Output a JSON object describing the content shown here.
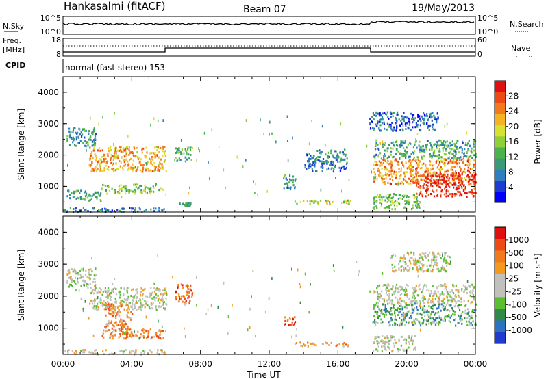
{
  "header": {
    "station": "Hankasalmi (fitACF)",
    "beam": "Beam 07",
    "date": "19/May/2013"
  },
  "strip1": {
    "left_label": "N.Sky",
    "right_label": "N.Search",
    "left_ticks": [
      "10^5",
      "10^0"
    ],
    "right_ticks": [
      "10^5",
      "10^0"
    ]
  },
  "strip2": {
    "left_label_line1": "Freq.",
    "left_label_line2": "[MHz]",
    "right_label": "Nave",
    "left_ticks": [
      "18",
      "8"
    ],
    "right_ticks": [
      "60",
      "0"
    ]
  },
  "cpid": {
    "label": "CPID",
    "text": "normal (fast stereo) 153"
  },
  "chart_data": [
    {
      "type": "heatmap",
      "name": "power",
      "ylabel": "Slant Range [km]",
      "ylim": [
        180,
        4500
      ],
      "yticks": [
        "1000",
        "2000",
        "3000",
        "4000"
      ],
      "xlim": [
        0,
        24
      ],
      "colorbar": {
        "label": "Power [dB]",
        "ticks": [
          "4",
          "8",
          "12",
          "16",
          "20",
          "24",
          "28"
        ],
        "colors": [
          "#0000ff",
          "#1e3cd2",
          "#2f7fbf",
          "#3a9a78",
          "#4bb34b",
          "#8fcf3a",
          "#d8e030",
          "#f4b225",
          "#f27a1d",
          "#ee4a16",
          "#e01010"
        ]
      },
      "regions": [
        {
          "t": [
            0.0,
            6.0
          ],
          "range": [
            200,
            350
          ],
          "level": 0.25
        },
        {
          "t": [
            0.2,
            1.9
          ],
          "range": [
            2300,
            2900
          ],
          "level": 0.3
        },
        {
          "t": [
            1.5,
            6.0
          ],
          "range": [
            1500,
            2300
          ],
          "level": 0.7
        },
        {
          "t": [
            2.2,
            5.8
          ],
          "range": [
            800,
            1100
          ],
          "level": 0.45
        },
        {
          "t": [
            0.2,
            2.2
          ],
          "range": [
            550,
            900
          ],
          "level": 0.35
        },
        {
          "t": [
            6.5,
            7.5
          ],
          "range": [
            1800,
            2300
          ],
          "level": 0.4
        },
        {
          "t": [
            6.7,
            7.4
          ],
          "range": [
            400,
            500
          ],
          "level": 0.3
        },
        {
          "t": [
            13.4,
            16.8
          ],
          "range": [
            460,
            580
          ],
          "level": 0.55
        },
        {
          "t": [
            12.8,
            13.5
          ],
          "range": [
            900,
            1400
          ],
          "level": 0.3
        },
        {
          "t": [
            14.0,
            16.5
          ],
          "range": [
            1500,
            2200
          ],
          "level": 0.25
        },
        {
          "t": [
            18.0,
            24.0
          ],
          "range": [
            1900,
            2500
          ],
          "level": 0.35
        },
        {
          "t": [
            18.0,
            24.0
          ],
          "range": [
            1100,
            1900
          ],
          "level": 0.75
        },
        {
          "t": [
            20.5,
            24.0
          ],
          "range": [
            700,
            1500
          ],
          "level": 0.95
        },
        {
          "t": [
            18.0,
            20.8
          ],
          "range": [
            300,
            800
          ],
          "level": 0.45
        },
        {
          "t": [
            17.8,
            21.8
          ],
          "range": [
            2800,
            3400
          ],
          "level": 0.2
        }
      ]
    },
    {
      "type": "heatmap",
      "name": "velocity",
      "ylabel": "Slant Range [km]",
      "ylim": [
        180,
        4500
      ],
      "yticks": [
        "1000",
        "2000",
        "3000",
        "4000"
      ],
      "xlim": [
        0,
        24
      ],
      "xticks": [
        "00:00",
        "04:00",
        "08:00",
        "12:00",
        "16:00",
        "20:00",
        "00:00"
      ],
      "xlabel": "Time UT",
      "colorbar": {
        "label": "Velocity [m s⁻¹]",
        "ticks": [
          "1000",
          "500",
          "100",
          "25",
          "-25",
          "-100",
          "-500",
          "-1000"
        ],
        "colors": [
          "#1f3ccc",
          "#2b72c0",
          "#2f8a4a",
          "#5abf2e",
          "#c0c0bc",
          "#c0c0bc",
          "#f39a1e",
          "#f27a1d",
          "#ee4a16",
          "#e01010"
        ]
      },
      "regions": [
        {
          "t": [
            0.0,
            6.0
          ],
          "range": [
            200,
            350
          ],
          "level": 0.55
        },
        {
          "t": [
            0.2,
            1.9
          ],
          "range": [
            2300,
            2900
          ],
          "level": 0.45
        },
        {
          "t": [
            1.5,
            6.0
          ],
          "range": [
            1600,
            2300
          ],
          "level": 0.48
        },
        {
          "t": [
            2.4,
            4.0
          ],
          "range": [
            800,
            1800
          ],
          "level": 0.7
        },
        {
          "t": [
            2.2,
            5.8
          ],
          "range": [
            700,
            1000
          ],
          "level": 0.72
        },
        {
          "t": [
            6.5,
            7.5
          ],
          "range": [
            1800,
            2400
          ],
          "level": 0.78
        },
        {
          "t": [
            13.4,
            16.8
          ],
          "range": [
            460,
            580
          ],
          "level": 0.68
        },
        {
          "t": [
            12.8,
            13.5
          ],
          "range": [
            1100,
            1400
          ],
          "level": 0.8
        },
        {
          "t": [
            18.0,
            24.0
          ],
          "range": [
            1800,
            2400
          ],
          "level": 0.48
        },
        {
          "t": [
            18.0,
            24.0
          ],
          "range": [
            1100,
            1800
          ],
          "level": 0.3
        },
        {
          "t": [
            18.0,
            20.5
          ],
          "range": [
            300,
            800
          ],
          "level": 0.48
        },
        {
          "t": [
            19.0,
            22.5
          ],
          "range": [
            2800,
            3400
          ],
          "level": 0.48
        }
      ]
    }
  ]
}
